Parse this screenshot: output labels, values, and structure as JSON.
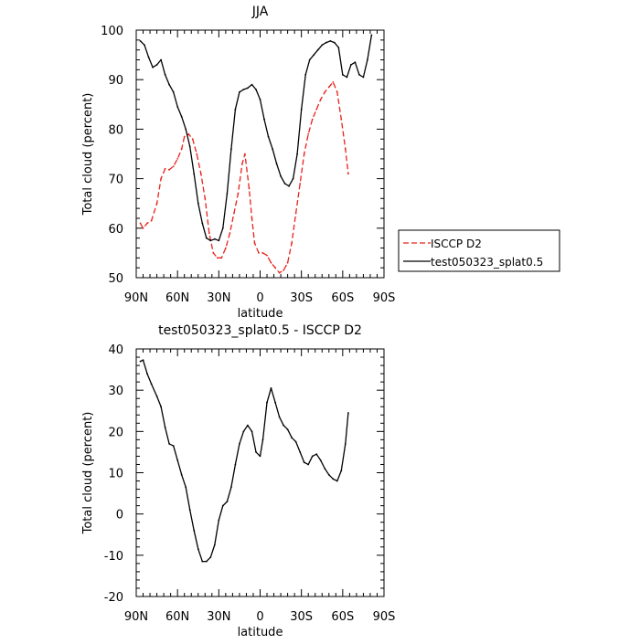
{
  "chart_data": [
    {
      "type": "line",
      "title": "JJA",
      "xlabel": "latitude",
      "ylabel": "Total cloud (percent)",
      "xlim": [
        90,
        -90
      ],
      "ylim": [
        50,
        100
      ],
      "x_ticks": [
        90,
        60,
        30,
        0,
        -30,
        -60,
        -90
      ],
      "x_tick_labels": [
        "90N",
        "60N",
        "30N",
        "0",
        "30S",
        "60S",
        "90S"
      ],
      "y_ticks": [
        50,
        60,
        70,
        80,
        90,
        100
      ],
      "y_tick_labels": [
        "50",
        "60",
        "70",
        "80",
        "90",
        "100"
      ],
      "legend_position": "right",
      "series": [
        {
          "name": "ISCCP D2",
          "color": "#e8221b",
          "dash": "dashed",
          "points": [
            [
              87,
              61
            ],
            [
              85,
              60
            ],
            [
              82,
              61
            ],
            [
              79,
              61.5
            ],
            [
              75,
              65
            ],
            [
              72,
              70
            ],
            [
              69,
              72
            ],
            [
              66,
              71.8
            ],
            [
              63,
              72.5
            ],
            [
              60,
              74
            ],
            [
              57,
              76
            ],
            [
              55,
              78.5
            ],
            [
              52,
              79
            ],
            [
              49,
              78
            ],
            [
              46,
              75
            ],
            [
              43,
              71
            ],
            [
              40,
              66
            ],
            [
              37,
              59
            ],
            [
              34,
              55
            ],
            [
              31,
              54
            ],
            [
              28,
              54
            ],
            [
              25,
              56
            ],
            [
              22,
              59
            ],
            [
              19,
              63
            ],
            [
              16,
              67
            ],
            [
              13,
              73
            ],
            [
              11,
              75
            ],
            [
              8,
              68
            ],
            [
              6,
              62
            ],
            [
              4,
              57
            ],
            [
              1,
              55
            ],
            [
              -2,
              55
            ],
            [
              -5,
              54.5
            ],
            [
              -8,
              53
            ],
            [
              -11,
              52
            ],
            [
              -14,
              51
            ],
            [
              -17,
              51.5
            ],
            [
              -20,
              53
            ],
            [
              -23,
              57
            ],
            [
              -26,
              63
            ],
            [
              -29,
              69
            ],
            [
              -32,
              75
            ],
            [
              -35,
              79
            ],
            [
              -38,
              82
            ],
            [
              -41,
              84
            ],
            [
              -44,
              86
            ],
            [
              -47,
              87.5
            ],
            [
              -50,
              88.5
            ],
            [
              -53,
              89.5
            ],
            [
              -56,
              87.5
            ],
            [
              -59,
              82
            ],
            [
              -62,
              76
            ],
            [
              -64,
              71
            ]
          ]
        },
        {
          "name": "test050323_splat0.5",
          "color": "#000000",
          "dash": "solid",
          "points": [
            [
              87,
              97.8
            ],
            [
              84,
              97
            ],
            [
              81,
              94.5
            ],
            [
              78,
              92.5
            ],
            [
              75,
              93
            ],
            [
              72,
              94
            ],
            [
              69,
              91
            ],
            [
              66,
              89
            ],
            [
              63,
              87.5
            ],
            [
              60,
              84.5
            ],
            [
              57,
              82.5
            ],
            [
              54,
              80
            ],
            [
              51,
              76.5
            ],
            [
              48,
              71
            ],
            [
              45,
              65
            ],
            [
              42,
              61
            ],
            [
              39,
              58
            ],
            [
              36,
              57.5
            ],
            [
              33,
              57.8
            ],
            [
              30,
              57.5
            ],
            [
              27,
              60
            ],
            [
              24,
              67
            ],
            [
              21,
              76
            ],
            [
              18,
              84
            ],
            [
              15,
              87.5
            ],
            [
              12,
              88
            ],
            [
              9,
              88.3
            ],
            [
              6,
              89
            ],
            [
              3,
              88
            ],
            [
              0,
              86
            ],
            [
              -3,
              82
            ],
            [
              -6,
              78.5
            ],
            [
              -9,
              76
            ],
            [
              -12,
              73
            ],
            [
              -15,
              70.5
            ],
            [
              -18,
              69
            ],
            [
              -21,
              68.5
            ],
            [
              -24,
              70
            ],
            [
              -27,
              75
            ],
            [
              -30,
              84
            ],
            [
              -33,
              91
            ],
            [
              -36,
              94
            ],
            [
              -39,
              95
            ],
            [
              -42,
              96
            ],
            [
              -45,
              97
            ],
            [
              -48,
              97.5
            ],
            [
              -51,
              97.8
            ],
            [
              -54,
              97.5
            ],
            [
              -57,
              96.5
            ],
            [
              -60,
              91
            ],
            [
              -63,
              90.5
            ],
            [
              -66,
              93
            ],
            [
              -69,
              93.5
            ],
            [
              -72,
              91
            ],
            [
              -75,
              90.5
            ],
            [
              -78,
              94
            ],
            [
              -81,
              99
            ]
          ]
        }
      ]
    },
    {
      "type": "line",
      "title": "test050323_splat0.5 - ISCCP D2",
      "xlabel": "latitude",
      "ylabel": "Total cloud (percent)",
      "xlim": [
        90,
        -90
      ],
      "ylim": [
        -20,
        40
      ],
      "x_ticks": [
        90,
        60,
        30,
        0,
        -30,
        -60,
        -90
      ],
      "x_tick_labels": [
        "90N",
        "60N",
        "30N",
        "0",
        "30S",
        "60S",
        "90S"
      ],
      "y_ticks": [
        -20,
        -10,
        0,
        10,
        20,
        30,
        40
      ],
      "y_tick_labels": [
        "-20",
        "-10",
        "0",
        "10",
        "20",
        "30",
        "40"
      ],
      "series": [
        {
          "color": "#000000",
          "dash": "solid",
          "points": [
            [
              87,
              37
            ],
            [
              85,
              37.3
            ],
            [
              82,
              34
            ],
            [
              79,
              31.5
            ],
            [
              75,
              28.5
            ],
            [
              72,
              26
            ],
            [
              69,
              21
            ],
            [
              66,
              17
            ],
            [
              63,
              16.5
            ],
            [
              60,
              13
            ],
            [
              57,
              9.5
            ],
            [
              54,
              6.5
            ],
            [
              51,
              1
            ],
            [
              48,
              -4
            ],
            [
              45,
              -8.5
            ],
            [
              42,
              -11.5
            ],
            [
              39,
              -11.5
            ],
            [
              36,
              -10.5
            ],
            [
              33,
              -7.5
            ],
            [
              30,
              -1.5
            ],
            [
              27,
              2
            ],
            [
              24,
              3
            ],
            [
              21,
              6.5
            ],
            [
              18,
              12
            ],
            [
              15,
              17
            ],
            [
              12,
              20
            ],
            [
              9,
              21.5
            ],
            [
              6,
              20
            ],
            [
              3,
              15
            ],
            [
              0,
              14
            ],
            [
              -2,
              18
            ],
            [
              -5,
              27
            ],
            [
              -8,
              30.5
            ],
            [
              -11,
              27
            ],
            [
              -14,
              23.5
            ],
            [
              -17,
              21.5
            ],
            [
              -20,
              20.5
            ],
            [
              -23,
              18.5
            ],
            [
              -26,
              17.5
            ],
            [
              -29,
              15
            ],
            [
              -32,
              12.5
            ],
            [
              -35,
              12
            ],
            [
              -38,
              14
            ],
            [
              -41,
              14.5
            ],
            [
              -44,
              13
            ],
            [
              -47,
              11
            ],
            [
              -50,
              9.5
            ],
            [
              -53,
              8.5
            ],
            [
              -56,
              8
            ],
            [
              -59,
              10.5
            ],
            [
              -62,
              17
            ],
            [
              -64,
              24.5
            ]
          ]
        }
      ]
    }
  ]
}
